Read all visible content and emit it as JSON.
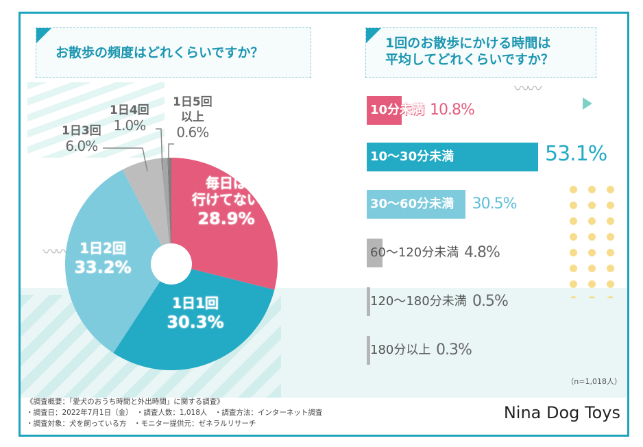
{
  "colors": {
    "frame": "#1ea3bd",
    "pink": "#e45b7b",
    "teal": "#23aac4",
    "light_blue": "#7ecbdd",
    "gray": "#b9b9b9",
    "gray_mid": "#9a9a9a",
    "gray_dark": "#7d7d7d",
    "text_gray": "#666666"
  },
  "left_panel": {
    "question": "お散歩の頻度はどれくらいですか？"
  },
  "right_panel": {
    "question_line1": "1回のお散歩にかける時間は",
    "question_line2": "平均してどれくらいですか？"
  },
  "chart_data": [
    {
      "type": "pie",
      "title": "お散歩の頻度はどれくらいですか？",
      "donut": true,
      "slices": [
        {
          "label": "毎日は行けてない",
          "label_lines": [
            "毎日は",
            "行けてない"
          ],
          "value": 28.9,
          "value_text": "28.9%",
          "color": "#e45b7b",
          "label_position": "inside"
        },
        {
          "label": "1日1回",
          "label_lines": [
            "1日1回"
          ],
          "value": 30.3,
          "value_text": "30.3%",
          "color": "#23aac4",
          "label_position": "inside"
        },
        {
          "label": "1日2回",
          "label_lines": [
            "1日2回"
          ],
          "value": 33.2,
          "value_text": "33.2%",
          "color": "#7ecbdd",
          "label_position": "inside"
        },
        {
          "label": "1日3回",
          "label_lines": [
            "1日3回"
          ],
          "value": 6.0,
          "value_text": "6.0%",
          "color": "#bdbdbd",
          "label_position": "outside"
        },
        {
          "label": "1日4回",
          "label_lines": [
            "1日4回"
          ],
          "value": 1.0,
          "value_text": "1.0%",
          "color": "#a6a6a6",
          "label_position": "outside"
        },
        {
          "label": "1日5回以上",
          "label_lines": [
            "1日5回",
            "以上"
          ],
          "value": 0.6,
          "value_text": "0.6%",
          "color": "#7d7d7d",
          "label_position": "outside"
        }
      ]
    },
    {
      "type": "bar",
      "orientation": "horizontal",
      "title": "1回のお散歩にかける時間は平均してどれくらいですか？",
      "categories": [
        "10分未満",
        "10〜30分未満",
        "30〜60分未満",
        "60〜120分未満",
        "120〜180分未満",
        "180分以上"
      ],
      "values": [
        10.8,
        53.1,
        30.5,
        4.8,
        0.5,
        0.3
      ],
      "value_texts": [
        "10.8%",
        "53.1%",
        "30.5%",
        "4.8%",
        "0.5%",
        "0.3%"
      ],
      "bar_colors": [
        "#e45b7b",
        "#23aac4",
        "#7ecbdd",
        "#b5b5b5",
        "#b5b5b5",
        "#b5b5b5"
      ],
      "value_colors": [
        "#e45b7b",
        "#23aac4",
        "#5fbfd6",
        "#666666",
        "#666666",
        "#666666"
      ],
      "label_colors": [
        "#ffffff",
        "#ffffff",
        "#ffffff",
        "#555555",
        "#555555",
        "#555555"
      ],
      "xlim": [
        0,
        60
      ],
      "sample_note": "（n=1,018人）"
    }
  ],
  "footer": {
    "line1": "《調査概要：「愛犬のおうち時間と外出時間」に関する調査》",
    "line2": "・調査日：2022年7月1日（金）　・調査人数：1,018人　・調査方法：インターネット調査",
    "line3": "・調査対象：犬を飼っている方　・モニター提供元：ゼネラルリサーチ",
    "brand": "Nina Dog Toys"
  }
}
